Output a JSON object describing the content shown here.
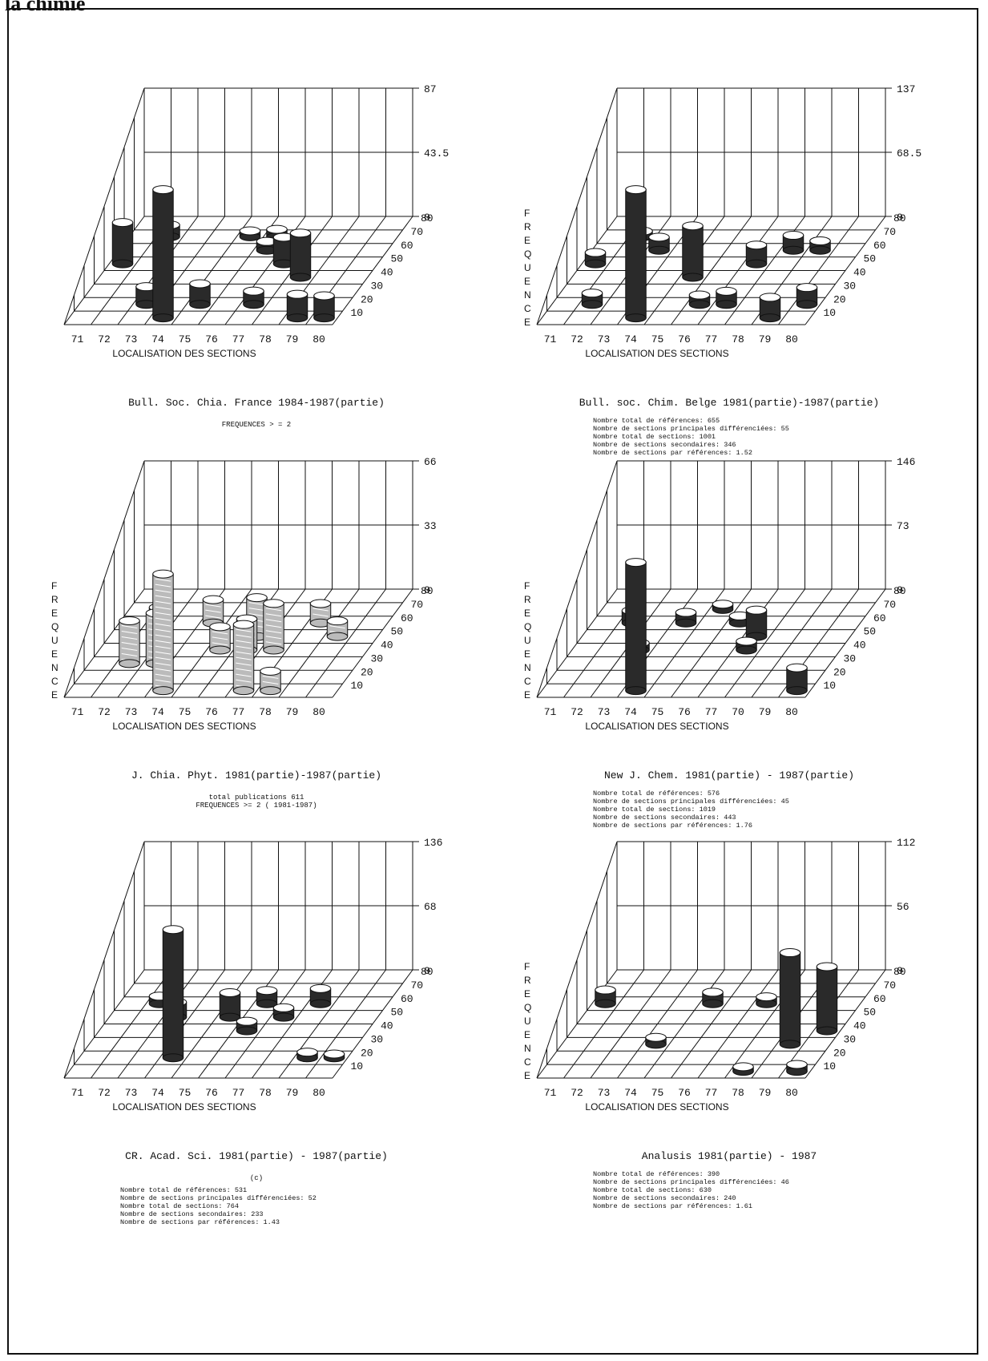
{
  "header": {
    "text": "la chimie"
  },
  "chart_data": [
    {
      "type": "bar",
      "subtype": "3d-cylinder",
      "title": "Bull. Soc. Chia. France 1984-1987(partie)",
      "subtitle": "FREQUENCES > = 2",
      "xlabel": "LOCALISATION DES SECTIONS",
      "ylabel": "",
      "x_ticks": [
        "71",
        "72",
        "73",
        "74",
        "75",
        "76",
        "77",
        "78",
        "79",
        "80"
      ],
      "depth_ticks": [
        "10",
        "20",
        "30",
        "40",
        "50",
        "60",
        "70",
        "80"
      ],
      "z_ticks": [
        "0",
        "43.5",
        "87"
      ],
      "zlim": [
        0,
        87
      ],
      "style": "dark",
      "points": [
        {
          "x": "74",
          "depth": "10",
          "value": 87
        },
        {
          "x": "73",
          "depth": "20",
          "value": 12
        },
        {
          "x": "75",
          "depth": "20",
          "value": 14
        },
        {
          "x": "77",
          "depth": "20",
          "value": 9
        },
        {
          "x": "79",
          "depth": "10",
          "value": 16
        },
        {
          "x": "80",
          "depth": "10",
          "value": 15
        },
        {
          "x": "71",
          "depth": "50",
          "value": 28
        },
        {
          "x": "72",
          "depth": "70",
          "value": 8
        },
        {
          "x": "76",
          "depth": "60",
          "value": 6
        },
        {
          "x": "77",
          "depth": "50",
          "value": 18
        },
        {
          "x": "78",
          "depth": "40",
          "value": 30
        },
        {
          "x": "76",
          "depth": "70",
          "value": 5
        },
        {
          "x": "75",
          "depth": "70",
          "value": 4
        }
      ],
      "stats": []
    },
    {
      "type": "bar",
      "subtype": "3d-cylinder",
      "title": "Bull. soc. Chim. Belge 1981(partie)-1987(partie)",
      "subtitle": "",
      "xlabel": "LOCALISATION DES SECTIONS",
      "ylabel": "FREQUENCE",
      "x_ticks": [
        "71",
        "72",
        "73",
        "74",
        "75",
        "76",
        "77",
        "78",
        "79",
        "80"
      ],
      "depth_ticks": [
        "10",
        "20",
        "30",
        "40",
        "50",
        "60",
        "70",
        "80"
      ],
      "z_ticks": [
        "0",
        "68.5",
        "137"
      ],
      "zlim": [
        0,
        137
      ],
      "style": "dark",
      "points": [
        {
          "x": "74",
          "depth": "10",
          "value": 137
        },
        {
          "x": "75",
          "depth": "40",
          "value": 55
        },
        {
          "x": "72",
          "depth": "20",
          "value": 12
        },
        {
          "x": "76",
          "depth": "20",
          "value": 10
        },
        {
          "x": "77",
          "depth": "20",
          "value": 14
        },
        {
          "x": "79",
          "depth": "10",
          "value": 22
        },
        {
          "x": "80",
          "depth": "20",
          "value": 18
        },
        {
          "x": "71",
          "depth": "50",
          "value": 12
        },
        {
          "x": "73",
          "depth": "60",
          "value": 14
        },
        {
          "x": "77",
          "depth": "50",
          "value": 20
        },
        {
          "x": "78",
          "depth": "60",
          "value": 16
        },
        {
          "x": "79",
          "depth": "60",
          "value": 10
        },
        {
          "x": "72",
          "depth": "70",
          "value": 6
        }
      ],
      "stats": [
        "Nombre total de références: 655",
        "Nombre de sections principales différenciées: 55",
        "Nombre total de sections: 1001",
        "Nombre de sections secondaires: 346",
        "Nombre de sections par références: 1.52"
      ]
    },
    {
      "type": "bar",
      "subtype": "3d-cylinder",
      "title": "J. Chia. Phyt. 1981(partie)-1987(partie)",
      "subtitle": "total publications 611\nFREQUENCES >= 2 ( 1981-1987)",
      "xlabel": "LOCALISATION DES SECTIONS",
      "ylabel": "FREQUENCE",
      "x_ticks": [
        "71",
        "72",
        "73",
        "74",
        "75",
        "76",
        "77",
        "78",
        "79",
        "80"
      ],
      "depth_ticks": [
        "10",
        "20",
        "30",
        "40",
        "50",
        "60",
        "70",
        "80"
      ],
      "z_ticks": [
        "0",
        "33",
        "66"
      ],
      "zlim": [
        0,
        66
      ],
      "style": "light",
      "points": [
        {
          "x": "74",
          "depth": "10",
          "value": 60
        },
        {
          "x": "77",
          "depth": "10",
          "value": 34
        },
        {
          "x": "78",
          "depth": "10",
          "value": 10
        },
        {
          "x": "72",
          "depth": "30",
          "value": 22
        },
        {
          "x": "73",
          "depth": "30",
          "value": 26
        },
        {
          "x": "75",
          "depth": "40",
          "value": 12
        },
        {
          "x": "76",
          "depth": "40",
          "value": 16
        },
        {
          "x": "77",
          "depth": "40",
          "value": 24
        },
        {
          "x": "76",
          "depth": "50",
          "value": 20
        },
        {
          "x": "72",
          "depth": "60",
          "value": 8
        },
        {
          "x": "74",
          "depth": "60",
          "value": 12
        },
        {
          "x": "78",
          "depth": "60",
          "value": 10
        },
        {
          "x": "79",
          "depth": "50",
          "value": 8
        }
      ],
      "stats": []
    },
    {
      "type": "bar",
      "subtype": "3d-cylinder",
      "title": "New J. Chem. 1981(partie) - 1987(partie)",
      "subtitle": "",
      "xlabel": "LOCALISATION DES SECTIONS",
      "ylabel": "FREQUENCE",
      "x_ticks": [
        "71",
        "72",
        "73",
        "74",
        "75",
        "76",
        "77",
        "70",
        "79",
        "80"
      ],
      "depth_ticks": [
        "10",
        "20",
        "30",
        "40",
        "50",
        "60",
        "70",
        "80"
      ],
      "z_ticks": [
        "0",
        "73",
        "146"
      ],
      "zlim": [
        0,
        146
      ],
      "style": "dark",
      "points": [
        {
          "x": "74",
          "depth": "10",
          "value": 146
        },
        {
          "x": "80",
          "depth": "10",
          "value": 26
        },
        {
          "x": "78",
          "depth": "10",
          "value": 6
        },
        {
          "x": "73",
          "depth": "40",
          "value": 8
        },
        {
          "x": "77",
          "depth": "40",
          "value": 10
        },
        {
          "x": "72",
          "depth": "60",
          "value": 14
        },
        {
          "x": "74",
          "depth": "60",
          "value": 12
        },
        {
          "x": "76",
          "depth": "60",
          "value": 8
        },
        {
          "x": "77",
          "depth": "50",
          "value": 30
        },
        {
          "x": "78",
          "depth": "60",
          "value": 22
        },
        {
          "x": "75",
          "depth": "70",
          "value": 6
        }
      ],
      "stats": [
        "Nombre total de références: 576",
        "Nombre de sections principales différenciées: 45",
        "Nombre total de sections: 1019",
        "Nombre de sections secondaires: 443",
        "Nombre de sections par références: 1.76"
      ]
    },
    {
      "type": "bar",
      "subtype": "3d-cylinder",
      "title": "CR. Acad. Sci. 1981(partie) - 1987(partie)",
      "subtitle": "(c)",
      "xlabel": "LOCALISATION DES SECTIONS",
      "ylabel": "",
      "x_ticks": [
        "71",
        "72",
        "73",
        "74",
        "75",
        "76",
        "77",
        "78",
        "79",
        "80"
      ],
      "depth_ticks": [
        "10",
        "20",
        "30",
        "40",
        "50",
        "60",
        "70",
        "80"
      ],
      "z_ticks": [
        "0",
        "68",
        "136"
      ],
      "zlim": [
        0,
        136
      ],
      "style": "dark",
      "points": [
        {
          "x": "74",
          "depth": "20",
          "value": 136
        },
        {
          "x": "73",
          "depth": "50",
          "value": 16
        },
        {
          "x": "75",
          "depth": "50",
          "value": 26
        },
        {
          "x": "76",
          "depth": "60",
          "value": 14
        },
        {
          "x": "77",
          "depth": "50",
          "value": 10
        },
        {
          "x": "78",
          "depth": "60",
          "value": 16
        },
        {
          "x": "79",
          "depth": "20",
          "value": 6
        },
        {
          "x": "80",
          "depth": "20",
          "value": 4
        },
        {
          "x": "72",
          "depth": "60",
          "value": 8
        },
        {
          "x": "76",
          "depth": "40",
          "value": 10
        }
      ],
      "stats": [
        "Nombre total de références: 531",
        "Nombre de sections principales différenciées: 52",
        "Nombre total de sections: 764",
        "Nombre de sections secondaires: 233",
        "Nombre de sections par références: 1.43"
      ]
    },
    {
      "type": "bar",
      "subtype": "3d-cylinder",
      "title": "Analusis 1981(partie) - 1987",
      "subtitle": "",
      "xlabel": "LOCALISATION DES SECTIONS",
      "ylabel": "FREQUENCE",
      "x_ticks": [
        "71",
        "72",
        "73",
        "74",
        "75",
        "76",
        "77",
        "78",
        "79",
        "80"
      ],
      "depth_ticks": [
        "10",
        "20",
        "30",
        "40",
        "50",
        "60",
        "70",
        "80"
      ],
      "z_ticks": [
        "0",
        "56",
        "112"
      ],
      "zlim": [
        0,
        112
      ],
      "style": "dark",
      "points": [
        {
          "x": "79",
          "depth": "30",
          "value": 80
        },
        {
          "x": "80",
          "depth": "40",
          "value": 56
        },
        {
          "x": "71",
          "depth": "60",
          "value": 12
        },
        {
          "x": "74",
          "depth": "30",
          "value": 6
        },
        {
          "x": "78",
          "depth": "10",
          "value": 4
        },
        {
          "x": "75",
          "depth": "60",
          "value": 10
        },
        {
          "x": "77",
          "depth": "60",
          "value": 6
        },
        {
          "x": "80",
          "depth": "10",
          "value": 6
        }
      ],
      "stats": [
        "Nombre total de références: 390",
        "Nombre de sections principales différenciées: 46",
        "Nombre total de sections: 630",
        "Nombre de sections secondaires: 240",
        "Nombre de sections par références: 1.61"
      ]
    }
  ]
}
